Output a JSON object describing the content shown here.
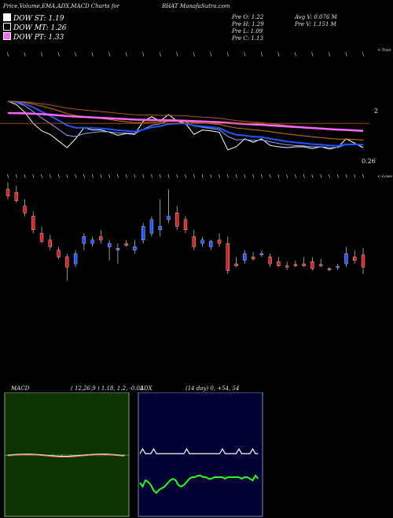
{
  "header": {
    "left_title": "Price,Volume,EMA,ADX,MACD Charts for",
    "symbol_source": "BHAT MunafaSutra.com"
  },
  "legend": [
    {
      "label": "DOW ST: 1.19",
      "color": "#ffffff"
    },
    {
      "label": "DOW MT: 1.26",
      "color": "#000000"
    },
    {
      "label": "DOW PT: 1.33",
      "color": "#ff66ff"
    }
  ],
  "prev": {
    "open": "Pre  O: 1.22",
    "high": "Pre  H: 1.29",
    "low": "Pre  L: 1.09",
    "close": "Pre  C: 1.13"
  },
  "volume_info": {
    "avg": "Avg V: 0.076  M",
    "prev": "Pre  V: 1.151 M"
  },
  "top_chart": {
    "right_top_label": "<-Tops",
    "right_mid_label": "2",
    "right_bottom_label": "0.26",
    "colors": {
      "price": "#ffffff",
      "ema_fast": "#1e56ff",
      "ema_mid": "#8fa8ff",
      "ema_slow": "#cc7a00",
      "ema_long": "#ff66ff",
      "bb": "#b05a00"
    }
  },
  "candle_chart": {
    "right_label": "<-Lows",
    "colors": {
      "up": "#1e56ff",
      "down": "#e02020"
    }
  },
  "macd": {
    "label": "MACD",
    "params": "( 12,26,9 ) 1.18,  1.2,  -0.02",
    "bg": "#0d3300",
    "colors": {
      "macd": "#ffffff",
      "signal": "#ff4444",
      "hist": "#22ff22"
    }
  },
  "adx": {
    "label": "ADX",
    "params": "(14  day) 0,  +54,  54",
    "bg": "#000033",
    "colors": {
      "adx": "#ffffff",
      "di": "#22ff22"
    }
  },
  "chart_data": {
    "type": "candlestick",
    "candles": [
      {
        "o": 1.95,
        "h": 2.05,
        "l": 1.8,
        "c": 1.85
      },
      {
        "o": 1.9,
        "h": 2.0,
        "l": 1.75,
        "c": 1.78
      },
      {
        "o": 1.7,
        "h": 1.8,
        "l": 1.55,
        "c": 1.6
      },
      {
        "o": 1.55,
        "h": 1.62,
        "l": 1.3,
        "c": 1.35
      },
      {
        "o": 1.3,
        "h": 1.4,
        "l": 1.15,
        "c": 1.18
      },
      {
        "o": 1.2,
        "h": 1.28,
        "l": 1.05,
        "c": 1.1
      },
      {
        "o": 1.05,
        "h": 1.1,
        "l": 0.92,
        "c": 0.95
      },
      {
        "o": 0.95,
        "h": 1.0,
        "l": 0.6,
        "c": 0.8
      },
      {
        "o": 0.85,
        "h": 1.05,
        "l": 0.8,
        "c": 1.0
      },
      {
        "o": 1.15,
        "h": 1.3,
        "l": 1.05,
        "c": 1.25
      },
      {
        "o": 1.15,
        "h": 1.25,
        "l": 1.1,
        "c": 1.2
      },
      {
        "o": 1.25,
        "h": 1.35,
        "l": 1.15,
        "c": 1.2
      },
      {
        "o": 1.1,
        "h": 1.2,
        "l": 0.9,
        "c": 1.15
      },
      {
        "o": 1.05,
        "h": 1.15,
        "l": 0.85,
        "c": 1.08
      },
      {
        "o": 1.15,
        "h": 1.2,
        "l": 1.1,
        "c": 1.12
      },
      {
        "o": 1.05,
        "h": 1.2,
        "l": 1.0,
        "c": 1.1
      },
      {
        "o": 1.2,
        "h": 1.45,
        "l": 1.15,
        "c": 1.4
      },
      {
        "o": 1.3,
        "h": 1.55,
        "l": 1.25,
        "c": 1.5
      },
      {
        "o": 1.35,
        "h": 1.8,
        "l": 1.25,
        "c": 1.4
      },
      {
        "o": 1.5,
        "h": 1.95,
        "l": 1.45,
        "c": 1.55
      },
      {
        "o": 1.6,
        "h": 1.7,
        "l": 1.35,
        "c": 1.4
      },
      {
        "o": 1.5,
        "h": 1.55,
        "l": 1.3,
        "c": 1.35
      },
      {
        "o": 1.25,
        "h": 1.35,
        "l": 1.05,
        "c": 1.1
      },
      {
        "o": 1.15,
        "h": 1.25,
        "l": 1.1,
        "c": 1.2
      },
      {
        "o": 1.1,
        "h": 1.2,
        "l": 1.05,
        "c": 1.18
      },
      {
        "o": 1.2,
        "h": 1.3,
        "l": 1.1,
        "c": 1.15
      },
      {
        "o": 1.15,
        "h": 1.25,
        "l": 0.7,
        "c": 0.75
      },
      {
        "o": 0.85,
        "h": 0.95,
        "l": 0.8,
        "c": 0.82
      },
      {
        "o": 0.9,
        "h": 1.05,
        "l": 0.85,
        "c": 1.0
      },
      {
        "o": 0.95,
        "h": 1.02,
        "l": 0.9,
        "c": 0.92
      },
      {
        "o": 0.98,
        "h": 1.05,
        "l": 0.95,
        "c": 1.0
      },
      {
        "o": 0.95,
        "h": 1.0,
        "l": 0.8,
        "c": 0.85
      },
      {
        "o": 0.88,
        "h": 0.95,
        "l": 0.8,
        "c": 0.82
      },
      {
        "o": 0.82,
        "h": 0.88,
        "l": 0.76,
        "c": 0.8
      },
      {
        "o": 0.84,
        "h": 0.9,
        "l": 0.8,
        "c": 0.82
      },
      {
        "o": 0.85,
        "h": 0.95,
        "l": 0.8,
        "c": 0.82
      },
      {
        "o": 0.88,
        "h": 0.95,
        "l": 0.75,
        "c": 0.78
      },
      {
        "o": 0.84,
        "h": 0.92,
        "l": 0.8,
        "c": 0.82
      },
      {
        "o": 0.78,
        "h": 0.8,
        "l": 0.74,
        "c": 0.77
      },
      {
        "o": 0.8,
        "h": 0.85,
        "l": 0.76,
        "c": 0.81
      },
      {
        "o": 0.85,
        "h": 1.1,
        "l": 0.8,
        "c": 1.0
      },
      {
        "o": 0.95,
        "h": 1.05,
        "l": 0.85,
        "c": 0.9
      },
      {
        "o": 0.98,
        "h": 1.08,
        "l": 0.7,
        "c": 0.8
      }
    ]
  }
}
